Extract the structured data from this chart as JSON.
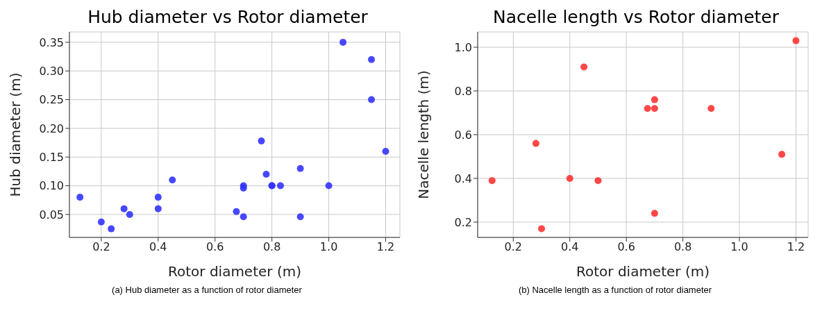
{
  "chart_data": [
    {
      "type": "scatter",
      "title": "Hub diameter vs Rotor diameter",
      "xlabel": "Rotor diameter (m)",
      "ylabel": "Hub diameter (m)",
      "annotations": [
        "(a) Hub diameter as a function of rotor diameter"
      ],
      "x": [
        0.125,
        0.2,
        0.235,
        0.28,
        0.3,
        0.4,
        0.4,
        0.45,
        0.675,
        0.7,
        0.7,
        0.7,
        0.763,
        0.78,
        0.8,
        0.8,
        0.83,
        0.9,
        0.9,
        1.0,
        1.05,
        1.15,
        1.15,
        1.2
      ],
      "series": [
        {
          "color": "#3333ff",
          "values": [
            0.08,
            0.037,
            0.025,
            0.06,
            0.05,
            0.08,
            0.06,
            0.11,
            0.055,
            0.1,
            0.096,
            0.046,
            0.178,
            0.12,
            0.1,
            0.1,
            0.1,
            0.13,
            0.046,
            0.1,
            0.35,
            0.32,
            0.25,
            0.16
          ]
        }
      ],
      "xlim": [
        0.088,
        1.25
      ],
      "xticks": [
        0.2,
        0.4,
        0.6,
        0.8,
        {
          "value": 1,
          "label": "1.0"
        },
        1.2
      ],
      "ylim": [
        0.01,
        0.368
      ],
      "yticks": [
        0.05,
        {
          "value": 0.1,
          "label": "0.10"
        },
        0.15,
        {
          "value": 0.2,
          "label": "0.20"
        },
        0.25,
        {
          "value": 0.3,
          "label": "0.30"
        },
        0.35
      ],
      "grid": true,
      "marker": "circle"
    },
    {
      "type": "scatter",
      "title": "Nacelle length vs Rotor diameter",
      "xlabel": "Rotor diameter (m)",
      "ylabel": "Nacelle length (m)",
      "annotations": [
        "(b) Nacelle length as a function of rotor diameter"
      ],
      "x": [
        0.125,
        0.28,
        0.3,
        0.4,
        0.45,
        0.5,
        0.675,
        0.7,
        0.7,
        0.7,
        0.9,
        1.15,
        1.2
      ],
      "series": [
        {
          "color": "#ff3333",
          "values": [
            0.39,
            0.56,
            0.17,
            0.4,
            0.91,
            0.39,
            0.72,
            0.72,
            0.76,
            0.24,
            0.72,
            0.51,
            1.03
          ]
        }
      ],
      "xlim": [
        0.074,
        1.243
      ],
      "xticks": [
        0.2,
        0.4,
        0.6,
        0.8,
        {
          "value": 1,
          "label": "1.0"
        },
        1.2
      ],
      "ylim": [
        0.13,
        1.07
      ],
      "yticks": [
        0.2,
        0.4,
        0.6,
        0.8,
        {
          "value": 1,
          "label": "1.0"
        }
      ],
      "grid": true,
      "marker": "circle"
    }
  ]
}
